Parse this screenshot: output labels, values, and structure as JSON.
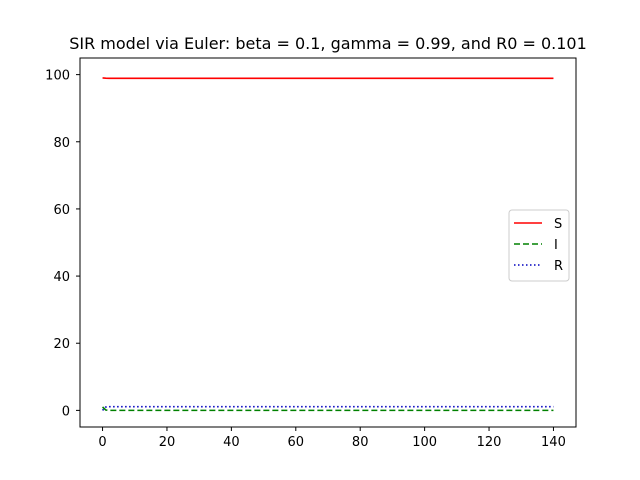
{
  "chart_data": {
    "type": "line",
    "title": "SIR model via Euler: beta = 0.1, gamma = 0.99, and R0 = 0.101",
    "xlabel": "",
    "ylabel": "",
    "xlim": [
      -7,
      147
    ],
    "ylim": [
      -4.95,
      104.95
    ],
    "xticks": [
      0,
      20,
      40,
      60,
      80,
      100,
      120,
      140
    ],
    "yticks": [
      0,
      20,
      40,
      60,
      80,
      100
    ],
    "grid": false,
    "legend_position": "center-right",
    "series": [
      {
        "name": "S",
        "color": "#ff0000",
        "dash": "solid",
        "x": [
          0,
          1,
          2,
          3,
          5,
          10,
          20,
          40,
          60,
          80,
          100,
          120,
          140
        ],
        "y": [
          99.0,
          98.93,
          98.9,
          98.89,
          98.89,
          98.89,
          98.89,
          98.89,
          98.89,
          98.89,
          98.89,
          98.89,
          98.89
        ]
      },
      {
        "name": "I",
        "color": "#008000",
        "dash": "dashed",
        "x": [
          0,
          1,
          2,
          3,
          5,
          10,
          20,
          40,
          60,
          80,
          100,
          120,
          140
        ],
        "y": [
          1.0,
          0.11,
          0.01,
          0.0,
          0.0,
          0.0,
          0.0,
          0.0,
          0.0,
          0.0,
          0.0,
          0.0,
          0.0
        ]
      },
      {
        "name": "R",
        "color": "#0000bf",
        "dash": "dotted",
        "x": [
          0,
          1,
          2,
          3,
          5,
          10,
          20,
          40,
          60,
          80,
          100,
          120,
          140
        ],
        "y": [
          0.0,
          0.99,
          1.1,
          1.11,
          1.11,
          1.11,
          1.11,
          1.11,
          1.11,
          1.11,
          1.11,
          1.11,
          1.11
        ]
      }
    ]
  }
}
